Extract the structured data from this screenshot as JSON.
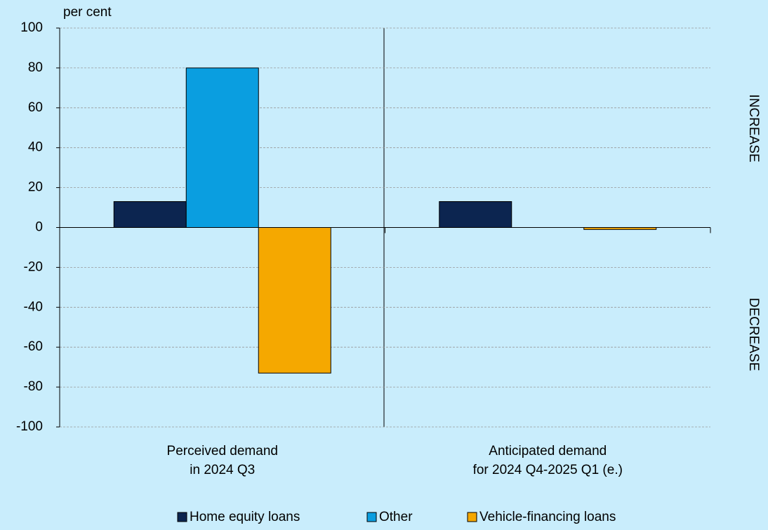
{
  "chart_data": {
    "type": "bar",
    "y_label": "per cent",
    "categories": [
      "Perceived demand\nin 2024 Q3",
      "Anticipated demand\nfor 2024 Q4-2025 Q1 (e.)"
    ],
    "series": [
      {
        "name": "Home equity loans",
        "color": "#0c2550",
        "values": [
          13,
          13
        ]
      },
      {
        "name": "Other",
        "color": "#0a9ee0",
        "values": [
          80,
          0
        ]
      },
      {
        "name": "Vehicle-financing loans",
        "color": "#f5a800",
        "values": [
          -73,
          -1
        ]
      }
    ],
    "ylim": [
      -100,
      100
    ],
    "yticks": [
      -100,
      -80,
      -60,
      -40,
      -20,
      0,
      20,
      40,
      60,
      80,
      100
    ],
    "grid": true,
    "side_labels": [
      "INCREASE",
      "DECREASE"
    ],
    "legend": "bottom"
  }
}
